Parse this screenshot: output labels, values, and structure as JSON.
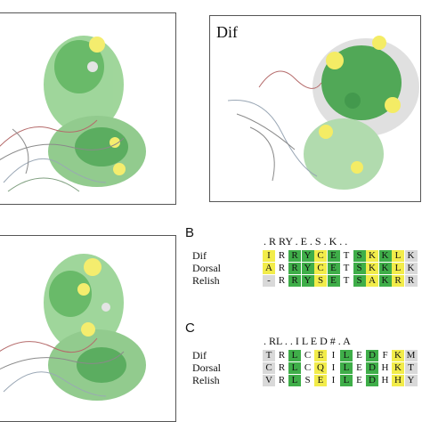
{
  "panels": {
    "top_right_label": "Dif",
    "b_letter": "B",
    "c_letter": "C"
  },
  "alignment_b": {
    "header": ". R RY . E . S . K . .",
    "rows": [
      {
        "name": "Dif",
        "residues": [
          "I",
          "R",
          "R",
          "Y",
          "C",
          "E",
          "T",
          "S",
          "K",
          "K",
          "L",
          "K"
        ],
        "colors": [
          "yellow",
          "white",
          "green",
          "green",
          "yellow",
          "green",
          "white",
          "green",
          "yellow",
          "green",
          "yellow",
          "grey"
        ]
      },
      {
        "name": "Dorsal",
        "residues": [
          "A",
          "R",
          "R",
          "Y",
          "C",
          "E",
          "T",
          "S",
          "K",
          "K",
          "L",
          "K"
        ],
        "colors": [
          "yellow",
          "white",
          "green",
          "green",
          "yellow",
          "green",
          "white",
          "green",
          "yellow",
          "green",
          "yellow",
          "grey"
        ]
      },
      {
        "name": "Relish",
        "residues": [
          "-",
          "R",
          "R",
          "Y",
          "S",
          "E",
          "T",
          "S",
          "A",
          "K",
          "R",
          "R"
        ],
        "colors": [
          "grey",
          "white",
          "green",
          "green",
          "yellow",
          "green",
          "white",
          "green",
          "yellow",
          "green",
          "yellow",
          "grey"
        ]
      }
    ]
  },
  "alignment_c": {
    "header": ". RL . . I L E D # . A",
    "rows": [
      {
        "name": "Dif",
        "residues": [
          "T",
          "R",
          "L",
          "C",
          "E",
          "I",
          "L",
          "E",
          "D",
          "F",
          "K",
          "M"
        ],
        "colors": [
          "grey",
          "white",
          "green",
          "white",
          "yellow",
          "white",
          "green",
          "white",
          "green",
          "white",
          "yellow",
          "grey"
        ]
      },
      {
        "name": "Dorsal",
        "residues": [
          "C",
          "R",
          "L",
          "C",
          "Q",
          "I",
          "L",
          "E",
          "D",
          "H",
          "K",
          "T"
        ],
        "colors": [
          "grey",
          "white",
          "green",
          "white",
          "yellow",
          "white",
          "green",
          "white",
          "green",
          "white",
          "yellow",
          "grey"
        ]
      },
      {
        "name": "Relish",
        "residues": [
          "V",
          "R",
          "L",
          "S",
          "E",
          "I",
          "L",
          "E",
          "D",
          "H",
          "H",
          "Y"
        ],
        "colors": [
          "grey",
          "white",
          "green",
          "white",
          "yellow",
          "white",
          "green",
          "white",
          "green",
          "white",
          "yellow",
          "grey"
        ]
      }
    ]
  },
  "colors": {
    "green": "#3fae49",
    "yellow": "#f2ec4a",
    "grey": "#d9d9d9",
    "white": "#ffffff"
  }
}
